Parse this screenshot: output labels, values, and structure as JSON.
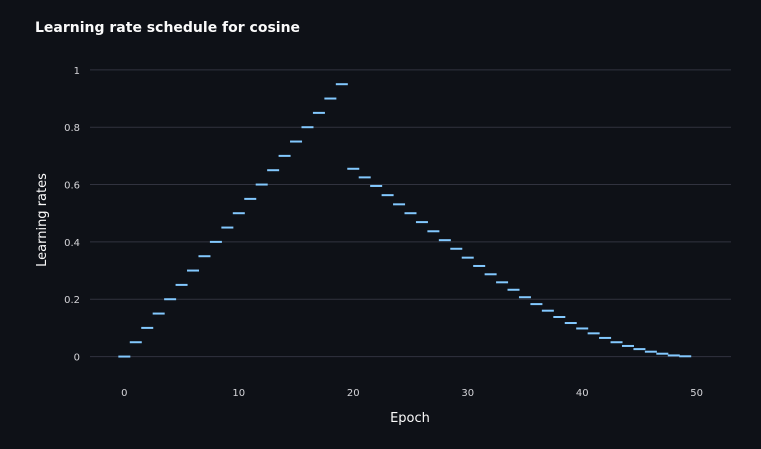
{
  "chart_data": {
    "type": "scatter",
    "title": "Learning rate schedule for cosine",
    "xlabel": "Epoch",
    "ylabel": "Learning rates",
    "xlim": [
      -3,
      53
    ],
    "ylim": [
      -0.005,
      1.01
    ],
    "x_ticks": [
      0,
      10,
      20,
      30,
      40,
      50
    ],
    "y_ticks": [
      0,
      0.2,
      0.4,
      0.6,
      0.8,
      1
    ],
    "grid": true,
    "marker": "horizontal-tick",
    "colors": {
      "background": "#0e1117",
      "points": "#83c9ff",
      "grid": "#31333f",
      "text": "#fafafa",
      "tick_text": "#d4d4d8"
    },
    "x": [
      0,
      1,
      2,
      3,
      4,
      5,
      6,
      7,
      8,
      9,
      10,
      11,
      12,
      13,
      14,
      15,
      16,
      17,
      18,
      19,
      20,
      21,
      22,
      23,
      24,
      25,
      26,
      27,
      28,
      29,
      30,
      31,
      32,
      33,
      34,
      35,
      36,
      37,
      38,
      39,
      40,
      41,
      42,
      43,
      44,
      45,
      46,
      47,
      48,
      49
    ],
    "y": [
      0,
      0.05,
      0.1,
      0.15,
      0.2,
      0.25,
      0.3,
      0.35,
      0.4,
      0.45,
      0.5,
      0.55,
      0.6,
      0.65,
      0.7,
      0.75,
      0.8,
      0.85,
      0.9,
      0.95,
      0.655,
      0.625,
      0.595,
      0.563,
      0.531,
      0.5,
      0.469,
      0.437,
      0.406,
      0.376,
      0.345,
      0.316,
      0.287,
      0.259,
      0.233,
      0.207,
      0.183,
      0.16,
      0.138,
      0.117,
      0.098,
      0.081,
      0.065,
      0.05,
      0.037,
      0.026,
      0.017,
      0.01,
      0.004,
      0.001
    ]
  }
}
